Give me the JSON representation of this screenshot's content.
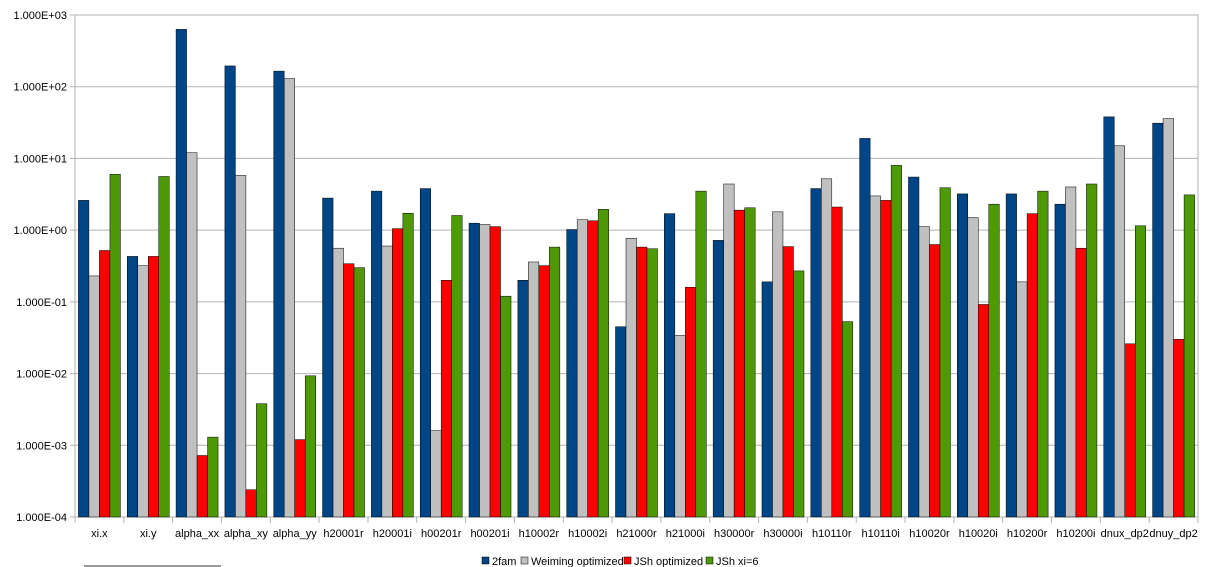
{
  "chart_data": {
    "type": "bar",
    "yscale": "log",
    "ylim": [
      0.0001,
      1000
    ],
    "yticks": [
      "1.000E-04",
      "1.000E-03",
      "1.000E-02",
      "1.000E-01",
      "1.000E+00",
      "1.000E+01",
      "1.000E+02",
      "1.000E+03"
    ],
    "grid": true,
    "legend_position": "bottom",
    "categories": [
      "xi.x",
      "xi.y",
      "alpha_xx",
      "alpha_xy",
      "alpha_yy",
      "h20001r",
      "h20001i",
      "h00201r",
      "h00201i",
      "h10002r",
      "h10002i",
      "h21000r",
      "h21000i",
      "h30000r",
      "h30000i",
      "h10110r",
      "h10110i",
      "h10020r",
      "h10020i",
      "h10200r",
      "h10200i",
      "dnux_dp2",
      "dnuy_dp2"
    ],
    "series": [
      {
        "name": "2fam",
        "color": "#004586",
        "values": [
          2.6,
          0.43,
          630,
          195,
          165,
          2.8,
          3.5,
          3.8,
          1.25,
          0.2,
          1.02,
          0.045,
          1.7,
          0.72,
          0.19,
          3.8,
          19,
          5.5,
          3.2,
          3.2,
          2.3,
          38,
          31
        ]
      },
      {
        "name": "Weiming optimized",
        "color": "#c0c0c0",
        "values": [
          0.23,
          0.32,
          12,
          5.8,
          130,
          0.56,
          0.6,
          0.0016,
          1.2,
          0.36,
          1.4,
          0.77,
          0.034,
          4.4,
          1.8,
          5.2,
          3.0,
          1.12,
          1.5,
          0.19,
          4.0,
          15,
          36
        ]
      },
      {
        "name": "JSh optimized",
        "color": "#ff0000",
        "values": [
          0.52,
          0.43,
          0.00072,
          0.00024,
          0.0012,
          0.34,
          1.05,
          0.2,
          1.12,
          0.32,
          1.35,
          0.58,
          0.16,
          1.9,
          0.59,
          2.1,
          2.6,
          0.63,
          0.092,
          1.7,
          0.56,
          0.026,
          0.03
        ]
      },
      {
        "name": "JSh xi=6",
        "color": "#4e9a06",
        "values": [
          6.0,
          5.6,
          0.0013,
          0.0038,
          0.0093,
          0.3,
          1.72,
          1.6,
          0.12,
          0.58,
          1.95,
          0.55,
          3.5,
          2.05,
          0.27,
          0.053,
          8.0,
          3.9,
          2.3,
          3.5,
          4.4,
          1.15,
          3.1
        ]
      }
    ]
  }
}
